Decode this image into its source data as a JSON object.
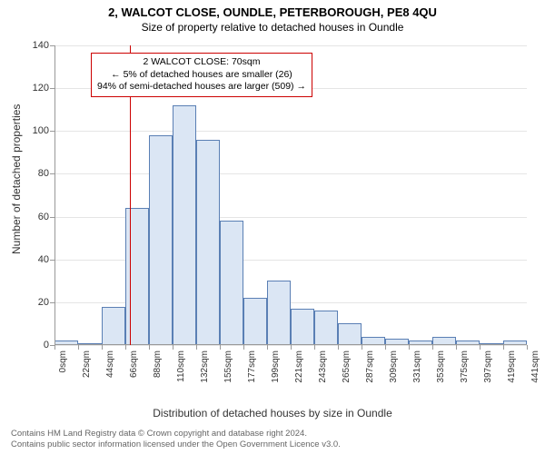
{
  "chart": {
    "type": "histogram",
    "title_main": "2, WALCOT CLOSE, OUNDLE, PETERBOROUGH, PE8 4QU",
    "title_sub": "Size of property relative to detached houses in Oundle",
    "y_label": "Number of detached properties",
    "x_label": "Distribution of detached houses by size in Oundle",
    "ylim": [
      0,
      140
    ],
    "y_ticks": [
      0,
      20,
      40,
      60,
      80,
      100,
      120,
      140
    ],
    "x_ticks": [
      "0sqm",
      "22sqm",
      "44sqm",
      "66sqm",
      "88sqm",
      "110sqm",
      "132sqm",
      "155sqm",
      "177sqm",
      "199sqm",
      "221sqm",
      "243sqm",
      "265sqm",
      "287sqm",
      "309sqm",
      "331sqm",
      "353sqm",
      "375sqm",
      "397sqm",
      "419sqm",
      "441sqm"
    ],
    "bar_values": [
      2,
      0,
      18,
      64,
      98,
      112,
      96,
      58,
      22,
      30,
      17,
      16,
      10,
      4,
      3,
      2,
      4,
      2,
      0,
      2
    ],
    "bar_fill": "#dbe6f4",
    "bar_stroke": "#5a7fb4",
    "bar_stroke_width": 1,
    "grid_color": "#e5e5e5",
    "axis_color": "#999999",
    "background_color": "#ffffff",
    "label_fontsize": 12,
    "tick_fontsize": 11,
    "title_fontsize": 13
  },
  "reference": {
    "value_sqm": 70,
    "color": "#cc0000",
    "width": 1
  },
  "annotation": {
    "border_color": "#cc0000",
    "line1": "2 WALCOT CLOSE: 70sqm",
    "line2": "← 5% of detached houses are smaller (26)",
    "line3": "94% of semi-detached houses are larger (509) →"
  },
  "footer": {
    "line1": "Contains HM Land Registry data © Crown copyright and database right 2024.",
    "line2": "Contains public sector information licensed under the Open Government Licence v3.0."
  }
}
